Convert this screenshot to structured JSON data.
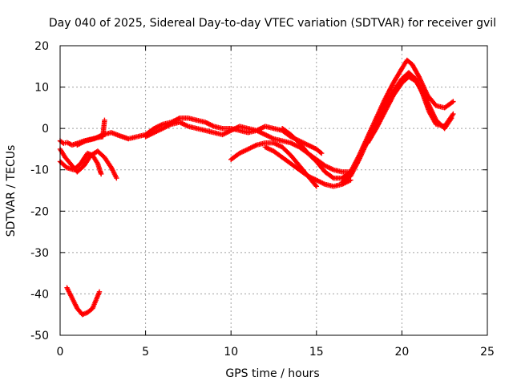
{
  "chart_data": {
    "type": "scatter",
    "title": "Day 040 of 2025, Sidereal Day-to-day VTEC variation (SDTVAR) for receiver gvil",
    "xlabel": "GPS time / hours",
    "ylabel": "SDTVAR / TECUs",
    "xlim": [
      0,
      25
    ],
    "ylim": [
      -50,
      20
    ],
    "xticks": [
      0,
      5,
      10,
      15,
      20,
      25
    ],
    "yticks": [
      -50,
      -40,
      -30,
      -20,
      -10,
      0,
      10,
      20
    ],
    "xtick_labels": [
      "0",
      "5",
      "10",
      "15",
      "20",
      "25"
    ],
    "ytick_labels": [
      "-50",
      "-40",
      "-30",
      "-20",
      "-10",
      "0",
      "10",
      "20"
    ],
    "grid": true,
    "marker": "+",
    "color": "#ff0000",
    "series": [
      {
        "name": "arc-1",
        "x": [
          0.0,
          0.2,
          0.4,
          0.7,
          1.0,
          1.4,
          1.8,
          2.2,
          2.5,
          2.6
        ],
        "y": [
          -3.0,
          -3.6,
          -3.4,
          -4.0,
          -3.6,
          -3.0,
          -2.6,
          -2.2,
          -2.0,
          2.0
        ]
      },
      {
        "name": "arc-2",
        "x": [
          0.0,
          0.3,
          0.7,
          1.0,
          1.4,
          1.8,
          2.2,
          2.6,
          3.0,
          3.3
        ],
        "y": [
          -5.0,
          -7.0,
          -9.0,
          -10.5,
          -9.0,
          -6.5,
          -5.5,
          -7.0,
          -9.5,
          -12.0
        ]
      },
      {
        "name": "arc-3",
        "x": [
          0.0,
          0.4,
          0.8,
          1.2,
          1.6,
          1.9,
          2.2,
          2.4
        ],
        "y": [
          -8.0,
          -9.5,
          -10.0,
          -8.5,
          -6.0,
          -6.5,
          -8.5,
          -11.0
        ]
      },
      {
        "name": "arc-4",
        "x": [
          0.4,
          0.7,
          1.0,
          1.3,
          1.6,
          1.9,
          2.1,
          2.3
        ],
        "y": [
          -38.5,
          -41.0,
          -43.5,
          -45.0,
          -44.5,
          -43.5,
          -41.5,
          -39.5
        ]
      },
      {
        "name": "arc-5",
        "x": [
          1.0,
          1.5,
          2.0,
          2.5,
          3.0,
          3.5,
          4.0,
          4.5,
          5.0,
          5.5,
          6.0,
          6.5,
          7.0,
          7.5,
          8.0,
          8.5,
          9.0,
          9.5,
          10.0,
          10.5,
          11.0,
          11.5,
          12.0,
          12.5,
          13.0,
          13.5,
          14.0,
          14.5,
          15.0,
          15.3
        ],
        "y": [
          -4.0,
          -3.0,
          -2.5,
          -1.5,
          -1.0,
          -1.8,
          -2.5,
          -2.0,
          -1.5,
          0.0,
          1.0,
          1.5,
          2.5,
          2.5,
          2.0,
          1.5,
          0.5,
          0.0,
          0.0,
          -0.5,
          -1.0,
          -0.5,
          0.5,
          0.0,
          -0.5,
          -2.0,
          -3.0,
          -4.0,
          -5.0,
          -6.0
        ]
      },
      {
        "name": "arc-6",
        "x": [
          5.0,
          5.5,
          6.0,
          6.5,
          7.0,
          7.5,
          8.0,
          8.5,
          9.0,
          9.5,
          10.0,
          10.5,
          11.0,
          11.5,
          12.0,
          12.5,
          13.0,
          13.5,
          14.0,
          14.5,
          15.0,
          15.5,
          16.0,
          16.5,
          17.0
        ],
        "y": [
          -2.0,
          -1.0,
          0.0,
          1.0,
          1.5,
          0.5,
          0.0,
          -0.5,
          -1.0,
          -1.5,
          -0.5,
          0.5,
          0.0,
          -0.5,
          -1.5,
          -2.5,
          -3.0,
          -3.5,
          -4.5,
          -6.0,
          -7.5,
          -9.0,
          -10.0,
          -10.5,
          -10.5
        ]
      },
      {
        "name": "arc-7",
        "x": [
          10.0,
          10.5,
          11.0,
          11.5,
          12.0,
          12.5,
          13.0,
          13.5,
          14.0,
          14.5,
          15.0
        ],
        "y": [
          -7.5,
          -6.0,
          -5.0,
          -4.0,
          -3.5,
          -3.5,
          -4.5,
          -6.5,
          -9.0,
          -11.5,
          -14.0
        ]
      },
      {
        "name": "arc-8",
        "x": [
          12.0,
          12.5,
          13.0,
          13.5,
          14.0,
          14.5,
          15.0,
          15.5,
          16.0,
          16.5,
          17.0
        ],
        "y": [
          -4.5,
          -5.5,
          -7.0,
          -8.5,
          -10.0,
          -11.5,
          -12.5,
          -13.5,
          -14.0,
          -13.5,
          -12.5
        ]
      },
      {
        "name": "arc-9",
        "x": [
          13.0,
          13.5,
          14.0,
          14.5,
          15.0,
          15.5,
          16.0,
          16.5,
          17.0,
          17.5,
          18.0,
          18.5,
          19.0,
          19.5,
          20.0,
          20.3,
          20.6,
          21.0,
          21.5,
          22.0,
          22.5,
          23.0
        ],
        "y": [
          0.0,
          -1.5,
          -3.5,
          -6.0,
          -8.0,
          -10.5,
          -12.0,
          -12.0,
          -10.5,
          -6.5,
          -2.0,
          2.5,
          7.0,
          11.0,
          14.5,
          16.5,
          15.5,
          12.5,
          8.0,
          5.5,
          5.0,
          6.5
        ]
      },
      {
        "name": "arc-10",
        "x": [
          16.5,
          17.0,
          17.5,
          18.0,
          18.5,
          19.0,
          19.5,
          20.0,
          20.4,
          20.8,
          21.2,
          21.6,
          22.0,
          22.5,
          23.0
        ],
        "y": [
          -13.0,
          -11.5,
          -7.5,
          -3.0,
          1.0,
          5.5,
          9.0,
          12.0,
          13.5,
          12.0,
          8.5,
          4.0,
          1.0,
          0.5,
          3.5
        ]
      },
      {
        "name": "arc-11",
        "x": [
          18.0,
          18.5,
          19.0,
          19.5,
          20.0,
          20.4,
          20.8,
          21.2,
          21.6,
          22.0,
          22.5,
          22.9
        ],
        "y": [
          -3.5,
          0.0,
          4.0,
          8.0,
          11.0,
          12.5,
          11.5,
          9.0,
          5.5,
          2.0,
          0.0,
          2.5
        ]
      }
    ]
  }
}
